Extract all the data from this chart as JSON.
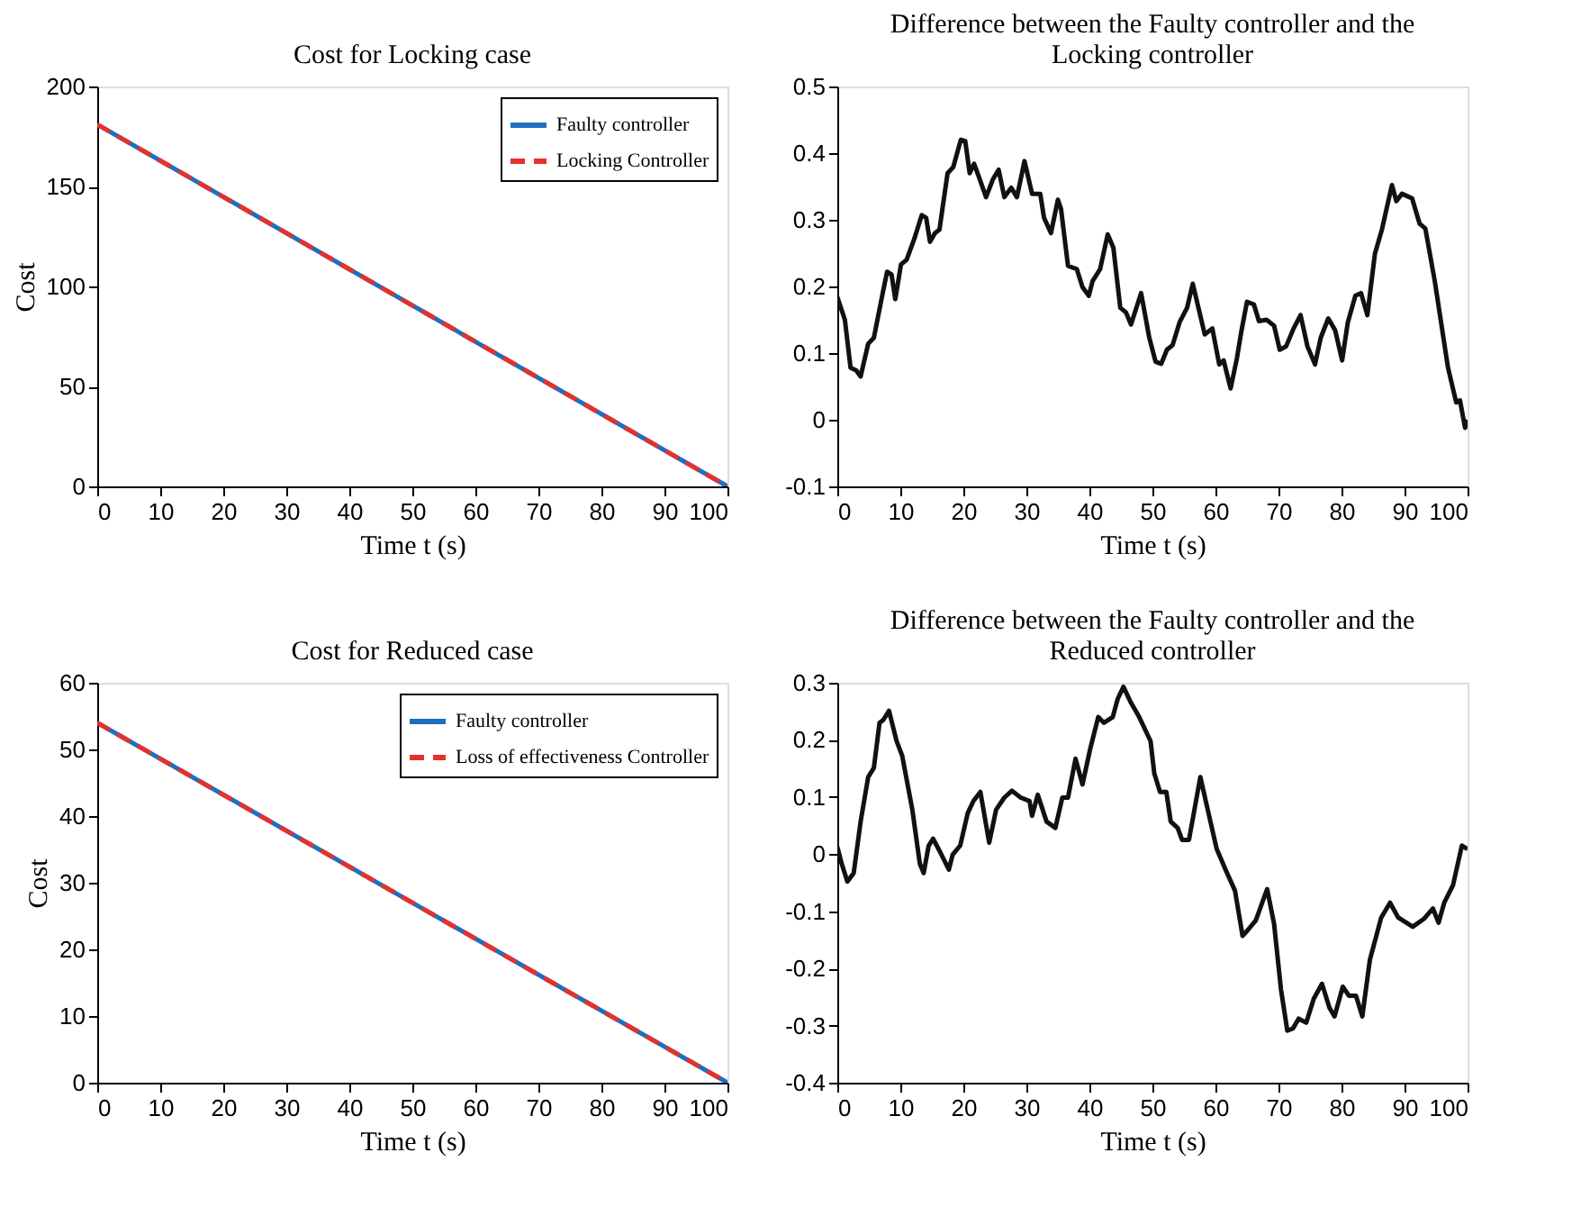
{
  "chart_data": [
    {
      "type": "line",
      "title": "Cost for Locking case",
      "xlabel": "Time t (s)",
      "ylabel": "Cost",
      "xlim": [
        0,
        100
      ],
      "xticks": [
        0,
        10,
        20,
        30,
        40,
        50,
        60,
        70,
        80,
        90,
        100
      ],
      "ylim": [
        0,
        200
      ],
      "yticks": [
        0,
        50,
        100,
        150,
        200
      ],
      "legend": "top right",
      "series": [
        {
          "name": "Faulty controller",
          "color": "#1f6fbf",
          "line_style": "solid",
          "x": [
            0,
            100
          ],
          "values": [
            181,
            0
          ]
        },
        {
          "name": "Locking Controller",
          "color": "#e8302a",
          "line_style": "dashed",
          "x": [
            0,
            100
          ],
          "values": [
            181,
            0
          ]
        }
      ]
    },
    {
      "type": "line",
      "title": "Difference between the Faulty controller and the Locking controller",
      "xlabel": "Time t (s)",
      "xlim": [
        0,
        100
      ],
      "xticks": [
        0,
        10,
        20,
        30,
        40,
        50,
        60,
        70,
        80,
        90,
        100
      ],
      "ylim": [
        -0.1,
        0.5
      ],
      "yticks": [
        -0.1,
        0,
        0.1,
        0.2,
        0.3,
        0.4,
        0.5
      ],
      "series": [
        {
          "color": "#111111",
          "line_style": "solid",
          "x": [
            0,
            1.2,
            2.1,
            3.0,
            3.7,
            4.9,
            5.8,
            7.2,
            7.9,
            8.6,
            9.2,
            10.1,
            11.0,
            12.2,
            13.4,
            14.1,
            14.7,
            15.5,
            16.2,
            17.5,
            18.4,
            19.6,
            20.3,
            21.0,
            21.7,
            22.4,
            23.6,
            24.7,
            25.6,
            26.5,
            27.6,
            28.5,
            29.7,
            30.9,
            32.2,
            32.8,
            33.9,
            35.0,
            35.5,
            36.6,
            38.0,
            38.9,
            39.9,
            40.5,
            41.7,
            42.9,
            43.8,
            44.9,
            45.8,
            46.6,
            48.2,
            49.5,
            50.5,
            51.4,
            52.3,
            53.2,
            54.3,
            55.5,
            56.4,
            57.4,
            58.3,
            59.5,
            60.6,
            61.3,
            62.4,
            63.4,
            64.1,
            65.0,
            66.1,
            66.9,
            68.1,
            69.3,
            70.2,
            71.2,
            72.4,
            73.5,
            74.6,
            75.8,
            76.7,
            77.9,
            79.0,
            80.1,
            81.0,
            82.2,
            83.1,
            84.1,
            85.3,
            86.4,
            88.0,
            88.7,
            89.6,
            91.2,
            92.4,
            93.3,
            94.8,
            96.9,
            98.2,
            98.8,
            99.6,
            100
          ],
          "values": [
            0.184,
            0.15,
            0.078,
            0.074,
            0.065,
            0.114,
            0.123,
            0.19,
            0.222,
            0.218,
            0.181,
            0.233,
            0.24,
            0.271,
            0.307,
            0.303,
            0.267,
            0.28,
            0.285,
            0.37,
            0.379,
            0.42,
            0.418,
            0.37,
            0.384,
            0.366,
            0.334,
            0.361,
            0.375,
            0.334,
            0.348,
            0.334,
            0.388,
            0.339,
            0.339,
            0.303,
            0.28,
            0.33,
            0.316,
            0.231,
            0.226,
            0.199,
            0.186,
            0.208,
            0.226,
            0.278,
            0.258,
            0.168,
            0.161,
            0.143,
            0.19,
            0.123,
            0.087,
            0.084,
            0.105,
            0.112,
            0.146,
            0.168,
            0.204,
            0.164,
            0.128,
            0.137,
            0.083,
            0.089,
            0.047,
            0.092,
            0.132,
            0.177,
            0.173,
            0.148,
            0.15,
            0.141,
            0.105,
            0.11,
            0.137,
            0.157,
            0.11,
            0.083,
            0.123,
            0.152,
            0.134,
            0.089,
            0.146,
            0.186,
            0.19,
            0.157,
            0.249,
            0.285,
            0.352,
            0.328,
            0.339,
            0.332,
            0.294,
            0.287,
            0.208,
            0.078,
            0.026,
            0.029,
            -0.012,
            0.0
          ]
        }
      ]
    },
    {
      "type": "line",
      "title": "Cost for Reduced case",
      "xlabel": "Time t (s)",
      "ylabel": "Cost",
      "xlim": [
        0,
        100
      ],
      "xticks": [
        0,
        10,
        20,
        30,
        40,
        50,
        60,
        70,
        80,
        90,
        100
      ],
      "ylim": [
        0,
        60
      ],
      "yticks": [
        0,
        10,
        20,
        30,
        40,
        50,
        60
      ],
      "legend": "top right",
      "series": [
        {
          "name": "Faulty controller",
          "color": "#1f6fbf",
          "line_style": "solid",
          "x": [
            0,
            100
          ],
          "values": [
            54,
            0
          ]
        },
        {
          "name": "Loss of effectiveness Controller",
          "color": "#e8302a",
          "line_style": "dashed",
          "x": [
            0,
            100
          ],
          "values": [
            54,
            0
          ]
        }
      ]
    },
    {
      "type": "line",
      "title": "Difference between the Faulty controller and the Reduced controller",
      "xlabel": "Time t (s)",
      "xlim": [
        0,
        100
      ],
      "xticks": [
        0,
        10,
        20,
        30,
        40,
        50,
        60,
        70,
        80,
        90,
        100
      ],
      "ylim": [
        -0.4,
        0.3
      ],
      "yticks": [
        -0.4,
        -0.3,
        -0.2,
        -0.1,
        0,
        0.1,
        0.2,
        0.3
      ],
      "series": [
        {
          "color": "#111111",
          "line_style": "solid",
          "x": [
            0,
            0.7,
            1.6,
            2.6,
            3.7,
            4.9,
            5.8,
            6.7,
            7.3,
            8.2,
            9.4,
            10.3,
            11.9,
            13.1,
            13.7,
            14.5,
            15.2,
            16.3,
            17.7,
            18.3,
            19.5,
            20.7,
            21.6,
            22.7,
            24.1,
            25.2,
            26.5,
            27.7,
            29.1,
            30.5,
            30.9,
            31.8,
            33.2,
            34.6,
            35.7,
            36.6,
            37.8,
            38.9,
            40.1,
            41.4,
            42.3,
            43.7,
            44.5,
            45.4,
            46.5,
            47.9,
            49.7,
            50.3,
            51.2,
            52.2,
            52.9,
            54.0,
            54.7,
            55.8,
            57.6,
            59.1,
            60.2,
            61.6,
            63.1,
            64.3,
            65.2,
            66.4,
            68.2,
            69.3,
            70.4,
            71.4,
            72.3,
            73.2,
            74.4,
            75.6,
            76.9,
            78.1,
            78.9,
            80.2,
            81.2,
            82.3,
            83.3,
            84.5,
            86.3,
            87.7,
            89.0,
            91.3,
            93.1,
            94.5,
            95.4,
            96.3,
            97.7,
            99.1,
            100
          ],
          "values": [
            0.013,
            -0.017,
            -0.048,
            -0.033,
            0.057,
            0.135,
            0.151,
            0.23,
            0.235,
            0.251,
            0.198,
            0.172,
            0.078,
            -0.017,
            -0.033,
            0.015,
            0.027,
            0.004,
            -0.027,
            -0.001,
            0.015,
            0.072,
            0.093,
            0.109,
            0.02,
            0.078,
            0.099,
            0.111,
            0.099,
            0.093,
            0.067,
            0.104,
            0.057,
            0.046,
            0.099,
            0.099,
            0.167,
            0.122,
            0.183,
            0.24,
            0.23,
            0.24,
            0.272,
            0.293,
            0.267,
            0.24,
            0.198,
            0.141,
            0.109,
            0.109,
            0.057,
            0.046,
            0.025,
            0.025,
            0.135,
            0.062,
            0.009,
            -0.027,
            -0.064,
            -0.143,
            -0.132,
            -0.116,
            -0.061,
            -0.122,
            -0.237,
            -0.309,
            -0.305,
            -0.288,
            -0.295,
            -0.253,
            -0.227,
            -0.269,
            -0.284,
            -0.232,
            -0.248,
            -0.248,
            -0.284,
            -0.185,
            -0.111,
            -0.085,
            -0.111,
            -0.127,
            -0.113,
            -0.095,
            -0.12,
            -0.085,
            -0.054,
            0.015,
            0.009
          ]
        }
      ]
    }
  ]
}
